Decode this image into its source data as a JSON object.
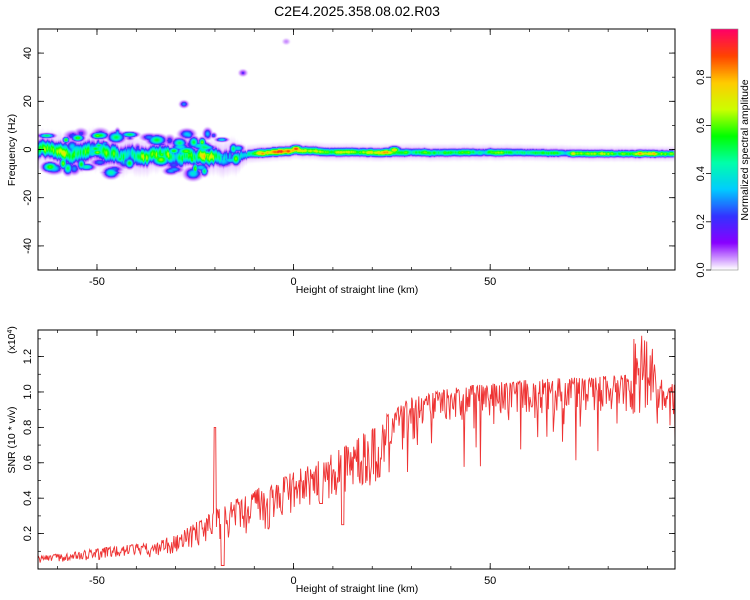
{
  "title": "C2E4.2025.358.08.02.R03",
  "chart_data": [
    {
      "type": "heatmap",
      "xlabel": "Height of straight line (km)",
      "ylabel": "Frequency (Hz)",
      "xlim": [
        -65,
        97
      ],
      "ylim": [
        -50,
        50
      ],
      "x_ticks": [
        -50,
        0,
        50
      ],
      "x_tick_labels": [
        "-50",
        "0",
        "50"
      ],
      "y_ticks": [
        -40,
        -20,
        0,
        20,
        40
      ],
      "y_tick_labels": [
        "-40",
        "-20",
        "0",
        "20",
        "40"
      ],
      "colorbar": {
        "label": "Normalized spectral amplitude",
        "range": [
          0.0,
          1.0
        ],
        "ticks": [
          0.0,
          0.2,
          0.4,
          0.6,
          0.8
        ],
        "tick_labels": [
          "0.0",
          "0.2",
          "0.4",
          "0.6",
          "0.8"
        ],
        "colors": [
          "#ffffff",
          "#8800ff",
          "#3333ff",
          "#00ccff",
          "#00ffaa",
          "#00ff00",
          "#ccff00",
          "#ffcc00",
          "#ff4400",
          "#ff0066"
        ]
      },
      "ridge": {
        "x_range": [
          -65,
          96
        ],
        "center_hz": [
          [
            -63,
            0
          ],
          [
            -55,
            -1
          ],
          [
            -45,
            -2
          ],
          [
            -35,
            -3
          ],
          [
            -25,
            -3
          ],
          [
            -15,
            -2
          ],
          [
            -10,
            -1.5
          ],
          [
            0,
            0
          ],
          [
            10,
            -1
          ],
          [
            25,
            -1
          ],
          [
            50,
            -1
          ],
          [
            75,
            -1.5
          ],
          [
            96,
            -1.5
          ]
        ],
        "width_hz": [
          [
            -63,
            6
          ],
          [
            -50,
            7
          ],
          [
            -35,
            6
          ],
          [
            -15,
            6
          ],
          [
            -12,
            3
          ],
          [
            0,
            3
          ],
          [
            96,
            2.5
          ]
        ],
        "amplitude": [
          [
            -63,
            0.5
          ],
          [
            -45,
            0.55
          ],
          [
            -25,
            0.5
          ],
          [
            -12,
            0.45
          ],
          [
            -8,
            0.7
          ],
          [
            0,
            0.85
          ],
          [
            2,
            0.7
          ],
          [
            10,
            0.55
          ],
          [
            25,
            0.65
          ],
          [
            40,
            0.55
          ],
          [
            60,
            0.5
          ],
          [
            80,
            0.6
          ],
          [
            96,
            0.7
          ]
        ]
      },
      "features": [
        {
          "x": 0.5,
          "y": 0.5,
          "amp": 0.95
        },
        {
          "x": -8,
          "y": -1.5,
          "amp": 0.85
        },
        {
          "x": 25.5,
          "y": 0,
          "amp": 0.8
        },
        {
          "x": 88,
          "y": -1.5,
          "amp": 0.85
        },
        {
          "x": 71,
          "y": -1.5,
          "amp": 0.75
        },
        {
          "x": 12,
          "y": -1,
          "amp": 0.7
        },
        {
          "x": -55,
          "y": 5,
          "amp": 0.6
        },
        {
          "x": -50,
          "y": -1,
          "amp": 0.65
        },
        {
          "x": -35,
          "y": -3,
          "amp": 0.6
        },
        {
          "x": -22,
          "y": -2,
          "amp": 0.65
        },
        {
          "x": -28,
          "y": 19,
          "amp": 0.3
        },
        {
          "x": -13,
          "y": 32,
          "amp": 0.2
        },
        {
          "x": -2,
          "y": 45,
          "amp": 0.12
        }
      ]
    },
    {
      "type": "line",
      "xlabel": "Height of straight line (km)",
      "ylabel": "SNR (10 * v/v)",
      "y_multiplier_label": "(x10^4)",
      "xlim": [
        -65,
        97
      ],
      "ylim": [
        0,
        1.35
      ],
      "x_ticks": [
        -50,
        0,
        50
      ],
      "x_tick_labels": [
        "-50",
        "0",
        "50"
      ],
      "y_ticks": [
        0.2,
        0.4,
        0.6,
        0.8,
        1.0,
        1.2
      ],
      "y_tick_labels": [
        "0.2",
        "0.4",
        "0.6",
        "0.8",
        "1.0",
        "1.2"
      ],
      "color": "#ee3333",
      "envelope": [
        [
          -65,
          0.07
        ],
        [
          -55,
          0.1
        ],
        [
          -45,
          0.13
        ],
        [
          -35,
          0.15
        ],
        [
          -28,
          0.22
        ],
        [
          -20,
          0.33
        ],
        [
          -10,
          0.45
        ],
        [
          0,
          0.55
        ],
        [
          10,
          0.65
        ],
        [
          20,
          0.8
        ],
        [
          25,
          0.9
        ],
        [
          30,
          0.97
        ],
        [
          40,
          1.02
        ],
        [
          50,
          1.05
        ],
        [
          60,
          1.07
        ],
        [
          70,
          1.08
        ],
        [
          80,
          1.09
        ],
        [
          87,
          1.1
        ],
        [
          90,
          1.1
        ],
        [
          96,
          1.05
        ]
      ],
      "dips": [
        {
          "x": 12.5,
          "y": 0.25
        },
        {
          "x": 7,
          "y": 0.37
        },
        {
          "x": -18,
          "y": 0.02
        },
        {
          "x": 89.5,
          "y": 0.72
        }
      ],
      "peaks": [
        {
          "x": 88,
          "y": 1.32
        },
        {
          "x": 91,
          "y": 1.35
        },
        {
          "x": -20,
          "y": 0.8
        }
      ]
    }
  ]
}
